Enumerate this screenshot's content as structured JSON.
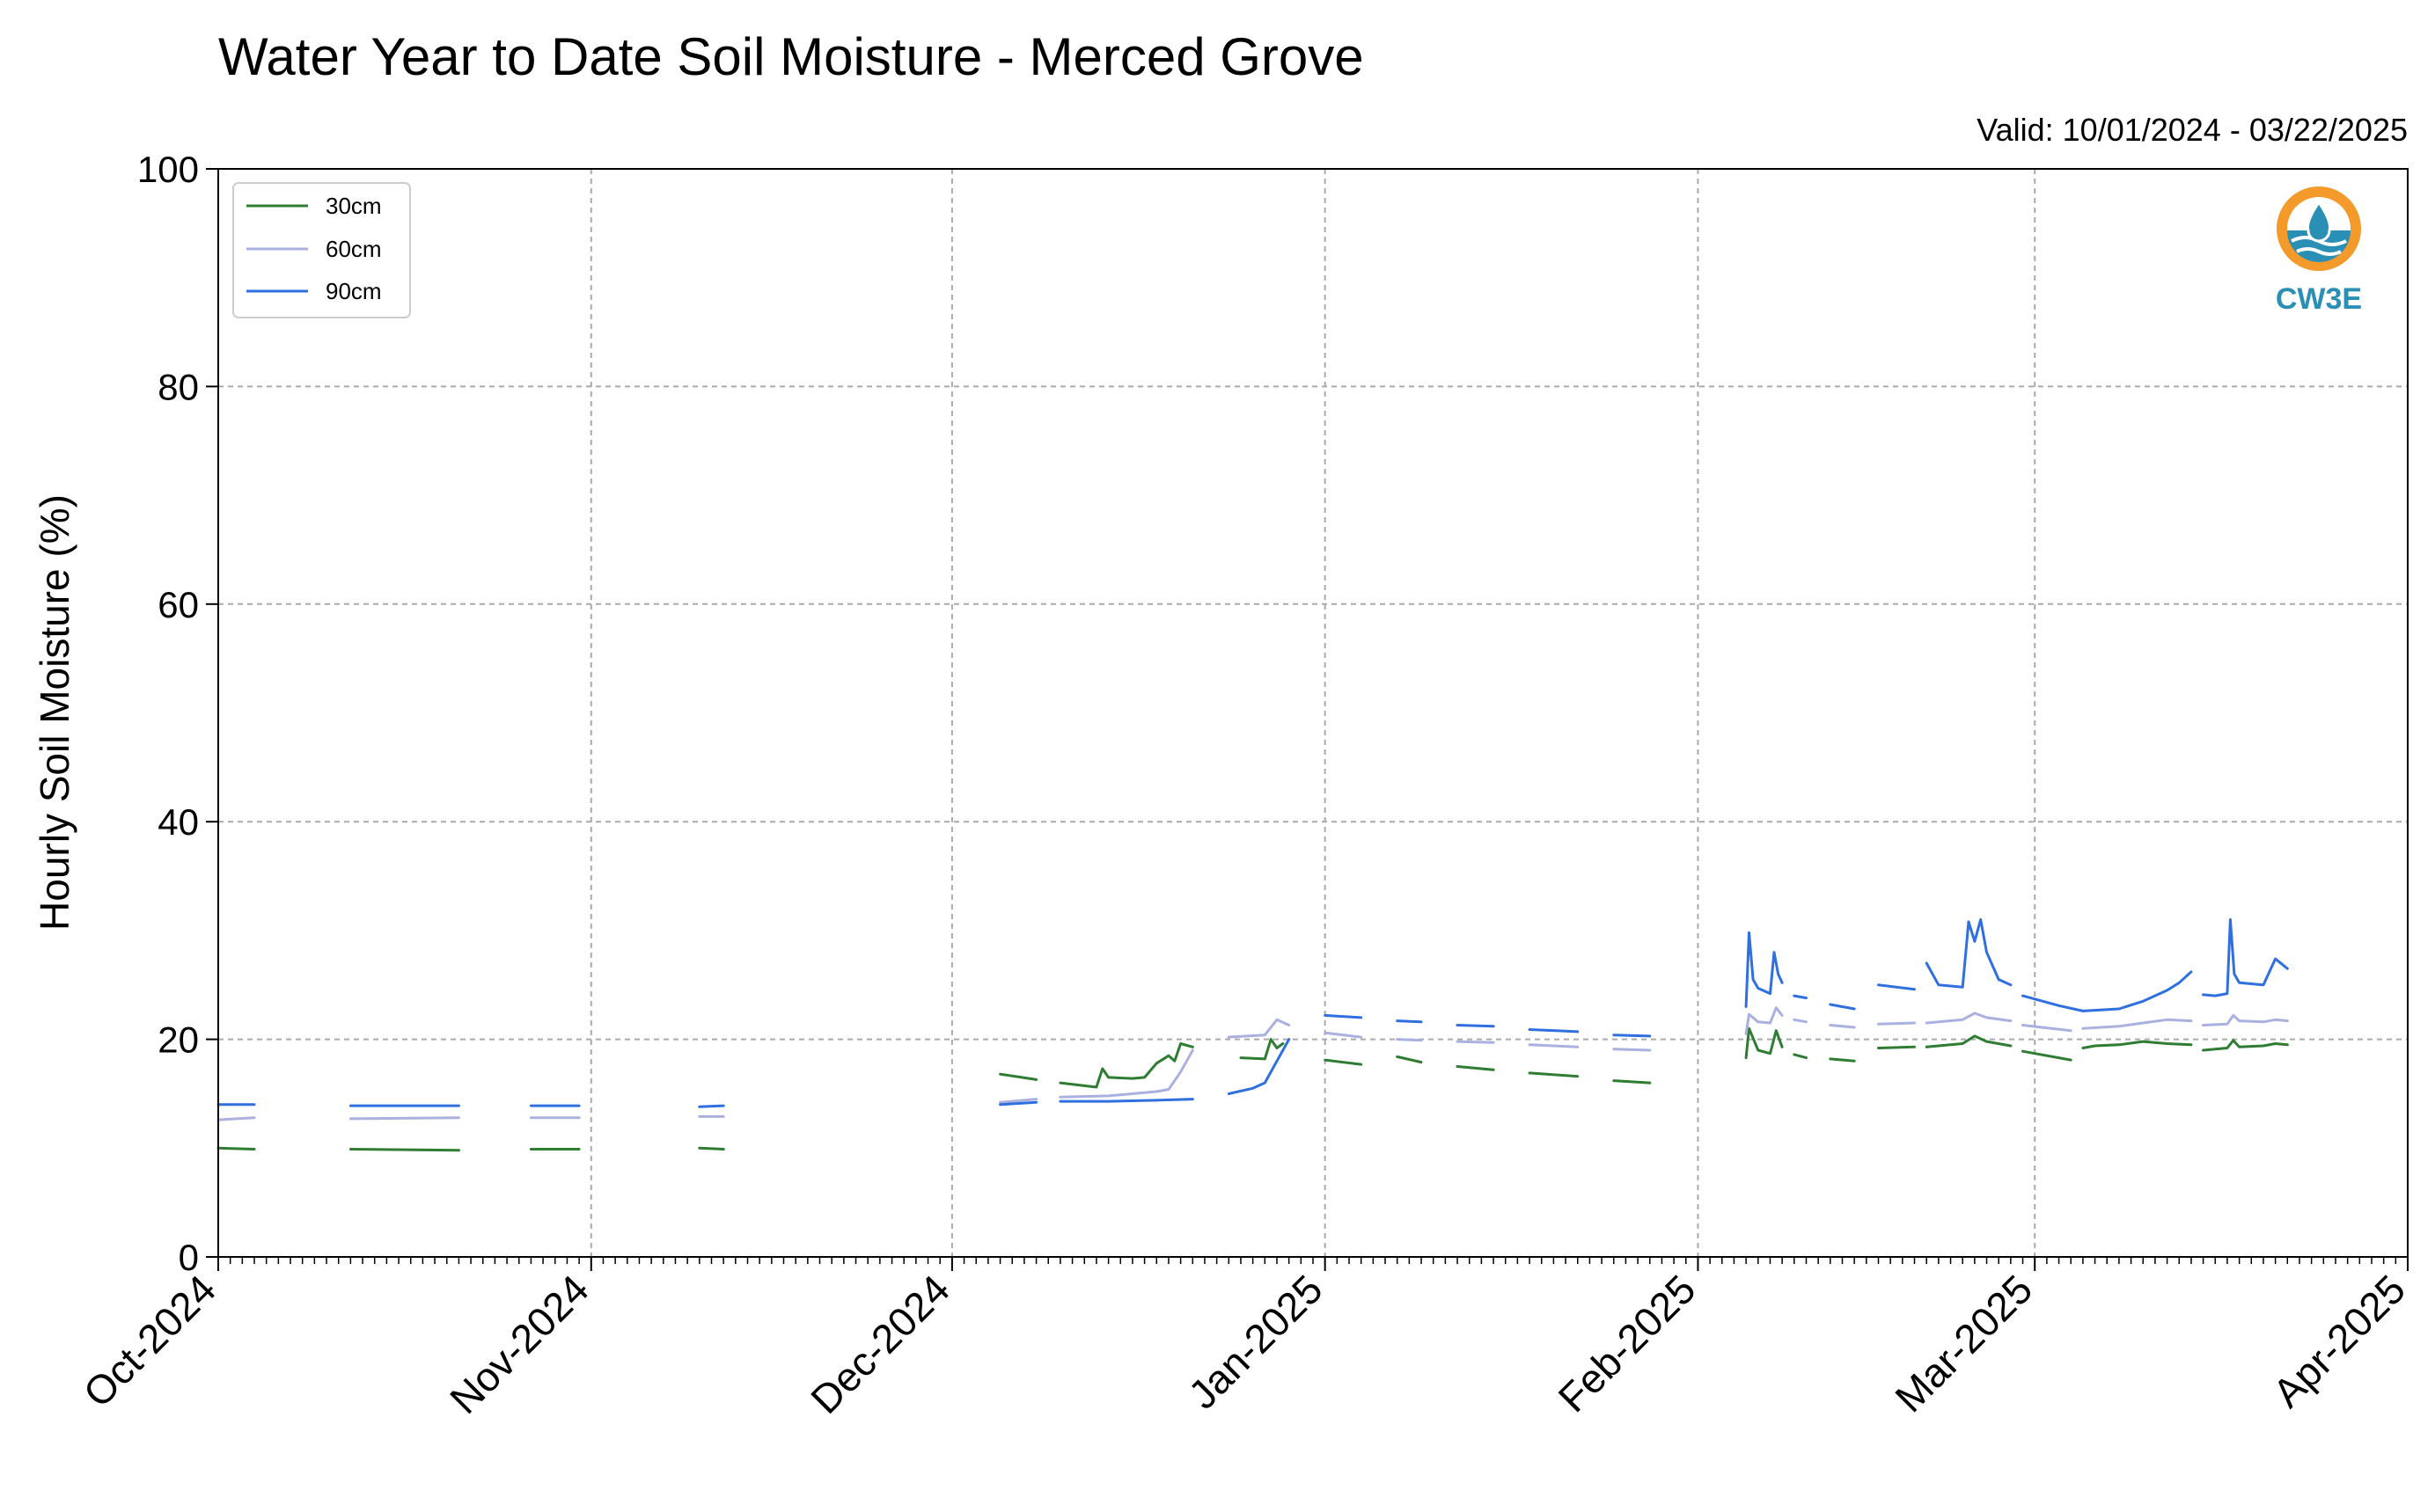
{
  "chart_data": {
    "type": "line",
    "title": "Water Year to Date Soil Moisture - Merced Grove",
    "subtitle": "Valid: 10/01/2024 - 03/22/2025",
    "xlabel": "",
    "ylabel": "Hourly Soil Moisture (%)",
    "xlim": [
      "2024-10-01",
      "2025-04-01"
    ],
    "ylim": [
      0,
      100
    ],
    "yticks": [
      0,
      20,
      40,
      60,
      80,
      100
    ],
    "xtick_labels": [
      "Oct-2024",
      "Nov-2024",
      "Dec-2024",
      "Jan-2025",
      "Feb-2025",
      "Mar-2025",
      "Apr-2025"
    ],
    "xtick_dates": [
      "2024-10-01",
      "2024-11-01",
      "2024-12-01",
      "2025-01-01",
      "2025-02-01",
      "2025-03-01",
      "2025-04-01"
    ],
    "grid": true,
    "legend_position": "top-left",
    "logo_text": "CW3E",
    "series": [
      {
        "name": "30cm",
        "color": "#2e7d32",
        "segments": [
          [
            [
              "2024-10-01",
              10.0
            ],
            [
              "2024-10-04",
              9.9
            ]
          ],
          [
            [
              "2024-10-12",
              9.9
            ],
            [
              "2024-10-21",
              9.8
            ]
          ],
          [
            [
              "2024-10-27",
              9.9
            ],
            [
              "2024-10-31",
              9.9
            ]
          ],
          [
            [
              "2024-11-10",
              10.0
            ],
            [
              "2024-11-12",
              9.9
            ]
          ],
          [
            [
              "2024-12-05",
              16.8
            ],
            [
              "2024-12-08",
              16.3
            ]
          ],
          [
            [
              "2024-12-10",
              16.0
            ],
            [
              "2024-12-13",
              15.6
            ],
            [
              "2024-12-13T12",
              17.3
            ],
            [
              "2024-12-14",
              16.5
            ],
            [
              "2024-12-16",
              16.4
            ],
            [
              "2024-12-17",
              16.5
            ],
            [
              "2024-12-18",
              17.8
            ],
            [
              "2024-12-19",
              18.5
            ],
            [
              "2024-12-19T12",
              18.0
            ],
            [
              "2024-12-20",
              19.6
            ],
            [
              "2024-12-21",
              19.3
            ]
          ],
          [
            [
              "2024-12-25",
              18.3
            ],
            [
              "2024-12-27",
              18.2
            ],
            [
              "2024-12-27T12",
              20.0
            ],
            [
              "2024-12-28",
              19.2
            ],
            [
              "2024-12-28T12",
              19.6
            ]
          ],
          [
            [
              "2025-01-01",
              18.1
            ],
            [
              "2025-01-04",
              17.7
            ]
          ],
          [
            [
              "2025-01-07",
              18.4
            ],
            [
              "2025-01-09",
              17.9
            ]
          ],
          [
            [
              "2025-01-12",
              17.5
            ],
            [
              "2025-01-15",
              17.2
            ]
          ],
          [
            [
              "2025-01-18",
              16.9
            ],
            [
              "2025-01-22",
              16.6
            ]
          ],
          [
            [
              "2025-01-25",
              16.2
            ],
            [
              "2025-01-28",
              16.0
            ]
          ],
          [
            [
              "2025-02-05",
              18.3
            ],
            [
              "2025-02-05T06",
              21.0
            ],
            [
              "2025-02-06",
              19.0
            ],
            [
              "2025-02-07",
              18.7
            ],
            [
              "2025-02-07T12",
              20.8
            ],
            [
              "2025-02-08",
              19.3
            ]
          ],
          [
            [
              "2025-02-09",
              18.6
            ],
            [
              "2025-02-10",
              18.3
            ]
          ],
          [
            [
              "2025-02-12",
              18.2
            ],
            [
              "2025-02-14",
              18.0
            ]
          ],
          [
            [
              "2025-02-16",
              19.2
            ],
            [
              "2025-02-19",
              19.3
            ]
          ],
          [
            [
              "2025-02-20",
              19.3
            ],
            [
              "2025-02-23",
              19.6
            ],
            [
              "2025-02-24",
              20.3
            ],
            [
              "2025-02-25",
              19.8
            ],
            [
              "2025-02-27",
              19.4
            ]
          ],
          [
            [
              "2025-02-28",
              18.9
            ],
            [
              "2025-03-04",
              18.1
            ]
          ],
          [
            [
              "2025-03-05",
              19.2
            ],
            [
              "2025-03-06",
              19.4
            ],
            [
              "2025-03-08",
              19.5
            ],
            [
              "2025-03-10",
              19.8
            ],
            [
              "2025-03-12",
              19.6
            ],
            [
              "2025-03-14",
              19.5
            ]
          ],
          [
            [
              "2025-03-15",
              19.0
            ],
            [
              "2025-03-17",
              19.2
            ],
            [
              "2025-03-17T12",
              19.9
            ],
            [
              "2025-03-18",
              19.3
            ],
            [
              "2025-03-20",
              19.4
            ],
            [
              "2025-03-21",
              19.6
            ],
            [
              "2025-03-22",
              19.5
            ]
          ]
        ]
      },
      {
        "name": "60cm",
        "color": "#aab0e0",
        "segments": [
          [
            [
              "2024-10-01",
              12.6
            ],
            [
              "2024-10-04",
              12.8
            ]
          ],
          [
            [
              "2024-10-12",
              12.7
            ],
            [
              "2024-10-21",
              12.8
            ]
          ],
          [
            [
              "2024-10-27",
              12.8
            ],
            [
              "2024-10-31",
              12.8
            ]
          ],
          [
            [
              "2024-11-10",
              12.9
            ],
            [
              "2024-11-12",
              12.9
            ]
          ],
          [
            [
              "2024-12-05",
              14.2
            ],
            [
              "2024-12-08",
              14.5
            ]
          ],
          [
            [
              "2024-12-10",
              14.7
            ],
            [
              "2024-12-14",
              14.8
            ],
            [
              "2024-12-18",
              15.2
            ],
            [
              "2024-12-19",
              15.4
            ],
            [
              "2024-12-20",
              17.0
            ],
            [
              "2024-12-21",
              19.0
            ]
          ],
          [
            [
              "2024-12-24",
              20.2
            ],
            [
              "2024-12-27",
              20.4
            ],
            [
              "2024-12-28",
              21.8
            ],
            [
              "2024-12-29",
              21.3
            ]
          ],
          [
            [
              "2025-01-01",
              20.6
            ],
            [
              "2025-01-04",
              20.2
            ]
          ],
          [
            [
              "2025-01-07",
              20.0
            ],
            [
              "2025-01-09",
              19.9
            ]
          ],
          [
            [
              "2025-01-12",
              19.8
            ],
            [
              "2025-01-15",
              19.7
            ]
          ],
          [
            [
              "2025-01-18",
              19.5
            ],
            [
              "2025-01-22",
              19.3
            ]
          ],
          [
            [
              "2025-01-25",
              19.1
            ],
            [
              "2025-01-28",
              19.0
            ]
          ],
          [
            [
              "2025-02-05",
              20.5
            ],
            [
              "2025-02-05T06",
              22.3
            ],
            [
              "2025-02-06",
              21.6
            ],
            [
              "2025-02-07",
              21.5
            ],
            [
              "2025-02-07T12",
              22.9
            ],
            [
              "2025-02-08",
              22.2
            ]
          ],
          [
            [
              "2025-02-09",
              21.8
            ],
            [
              "2025-02-10",
              21.6
            ]
          ],
          [
            [
              "2025-02-12",
              21.3
            ],
            [
              "2025-02-14",
              21.1
            ]
          ],
          [
            [
              "2025-02-16",
              21.4
            ],
            [
              "2025-02-19",
              21.5
            ]
          ],
          [
            [
              "2025-02-20",
              21.5
            ],
            [
              "2025-02-23",
              21.8
            ],
            [
              "2025-02-24",
              22.4
            ],
            [
              "2025-02-25",
              22.0
            ],
            [
              "2025-02-27",
              21.7
            ]
          ],
          [
            [
              "2025-02-28",
              21.3
            ],
            [
              "2025-03-04",
              20.8
            ]
          ],
          [
            [
              "2025-03-05",
              21.0
            ],
            [
              "2025-03-08",
              21.2
            ],
            [
              "2025-03-10",
              21.5
            ],
            [
              "2025-03-12",
              21.8
            ],
            [
              "2025-03-14",
              21.7
            ]
          ],
          [
            [
              "2025-03-15",
              21.3
            ],
            [
              "2025-03-17",
              21.4
            ],
            [
              "2025-03-17T12",
              22.2
            ],
            [
              "2025-03-18",
              21.7
            ],
            [
              "2025-03-20",
              21.6
            ],
            [
              "2025-03-21",
              21.8
            ],
            [
              "2025-03-22",
              21.7
            ]
          ]
        ]
      },
      {
        "name": "90cm",
        "color": "#2f6fe0",
        "segments": [
          [
            [
              "2024-10-01",
              14.0
            ],
            [
              "2024-10-04",
              14.0
            ]
          ],
          [
            [
              "2024-10-12",
              13.9
            ],
            [
              "2024-10-21",
              13.9
            ]
          ],
          [
            [
              "2024-10-27",
              13.9
            ],
            [
              "2024-10-31",
              13.9
            ]
          ],
          [
            [
              "2024-11-10",
              13.8
            ],
            [
              "2024-11-12",
              13.9
            ]
          ],
          [
            [
              "2024-12-05",
              14.0
            ],
            [
              "2024-12-08",
              14.2
            ]
          ],
          [
            [
              "2024-12-10",
              14.3
            ],
            [
              "2024-12-14",
              14.3
            ],
            [
              "2024-12-18",
              14.4
            ],
            [
              "2024-12-21",
              14.5
            ]
          ],
          [
            [
              "2024-12-24",
              15.0
            ],
            [
              "2024-12-26",
              15.5
            ],
            [
              "2024-12-27",
              16.0
            ],
            [
              "2024-12-28",
              18.0
            ],
            [
              "2024-12-29",
              20.0
            ]
          ],
          [
            [
              "2025-01-01",
              22.2
            ],
            [
              "2025-01-04",
              22.0
            ]
          ],
          [
            [
              "2025-01-07",
              21.7
            ],
            [
              "2025-01-09",
              21.6
            ]
          ],
          [
            [
              "2025-01-12",
              21.3
            ],
            [
              "2025-01-15",
              21.2
            ]
          ],
          [
            [
              "2025-01-18",
              20.9
            ],
            [
              "2025-01-22",
              20.7
            ]
          ],
          [
            [
              "2025-01-25",
              20.4
            ],
            [
              "2025-01-28",
              20.3
            ]
          ],
          [
            [
              "2025-02-05",
              23.0
            ],
            [
              "2025-02-05T06",
              29.8
            ],
            [
              "2025-02-05T14",
              25.5
            ],
            [
              "2025-02-06",
              24.7
            ],
            [
              "2025-02-07",
              24.2
            ],
            [
              "2025-02-07T08",
              28.0
            ],
            [
              "2025-02-07T16",
              26.0
            ],
            [
              "2025-02-08",
              25.2
            ]
          ],
          [
            [
              "2025-02-09",
              24.0
            ],
            [
              "2025-02-10",
              23.8
            ]
          ],
          [
            [
              "2025-02-12",
              23.2
            ],
            [
              "2025-02-14",
              22.8
            ]
          ],
          [
            [
              "2025-02-16",
              25.0
            ],
            [
              "2025-02-19",
              24.6
            ]
          ],
          [
            [
              "2025-02-20",
              27.0
            ],
            [
              "2025-02-21",
              25.0
            ],
            [
              "2025-02-23",
              24.8
            ],
            [
              "2025-02-23T12",
              30.8
            ],
            [
              "2025-02-24",
              29.0
            ],
            [
              "2025-02-24T12",
              31.0
            ],
            [
              "2025-02-25",
              28.0
            ],
            [
              "2025-02-26",
              25.5
            ],
            [
              "2025-02-27",
              25.0
            ]
          ],
          [
            [
              "2025-02-28",
              24.0
            ],
            [
              "2025-03-03",
              23.1
            ],
            [
              "2025-03-05",
              22.6
            ]
          ],
          [
            [
              "2025-03-05",
              22.6
            ],
            [
              "2025-03-08",
              22.8
            ],
            [
              "2025-03-10",
              23.5
            ],
            [
              "2025-03-12",
              24.5
            ],
            [
              "2025-03-13",
              25.2
            ],
            [
              "2025-03-14",
              26.2
            ]
          ],
          [
            [
              "2025-03-15",
              24.1
            ],
            [
              "2025-03-16",
              24.0
            ],
            [
              "2025-03-17",
              24.2
            ],
            [
              "2025-03-17T06",
              31.0
            ],
            [
              "2025-03-17T14",
              26.0
            ],
            [
              "2025-03-18",
              25.2
            ],
            [
              "2025-03-20",
              25.0
            ],
            [
              "2025-03-21",
              27.4
            ],
            [
              "2025-03-22",
              26.5
            ]
          ]
        ]
      }
    ]
  }
}
